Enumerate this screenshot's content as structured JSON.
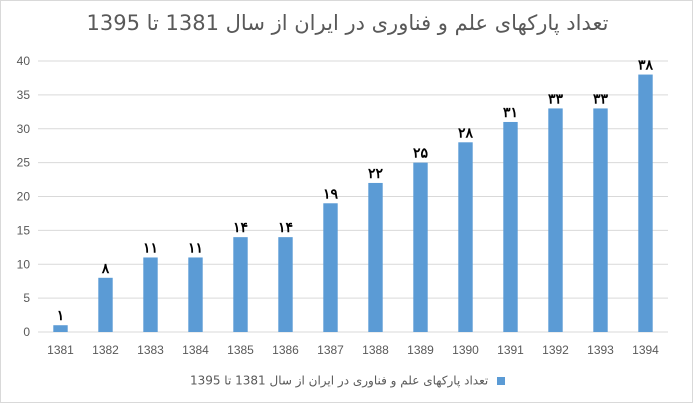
{
  "chart_data": {
    "type": "bar",
    "title": "تعداد پارکهای علم و فناوری در ایران از سال 1381 تا 1395",
    "categories": [
      "1381",
      "1382",
      "1383",
      "1384",
      "1385",
      "1386",
      "1387",
      "1388",
      "1389",
      "1390",
      "1391",
      "1392",
      "1393",
      "1394"
    ],
    "series": [
      {
        "name": "تعداد پارکهای علم و فناوری در ایران از سال 1381 تا 1395",
        "values": [
          1,
          8,
          11,
          11,
          14,
          14,
          19,
          22,
          25,
          28,
          31,
          33,
          33,
          38
        ],
        "data_labels": [
          "۱",
          "۸",
          "۱۱",
          "۱۱",
          "۱۴",
          "۱۴",
          "۱۹",
          "۲۲",
          "۲۵",
          "۲۸",
          "۳۱",
          "۳۳",
          "۳۳",
          "۳۸"
        ]
      }
    ],
    "ylim": [
      0,
      40
    ],
    "yticks": [
      0,
      5,
      10,
      15,
      20,
      25,
      30,
      35,
      40
    ],
    "xlabel": "",
    "ylabel": "",
    "grid": true,
    "legend_position": "bottom",
    "colors": {
      "bar": "#5b9bd5",
      "grid": "#d9d9d9",
      "axis_text": "#595959",
      "data_label": "#000000"
    }
  }
}
